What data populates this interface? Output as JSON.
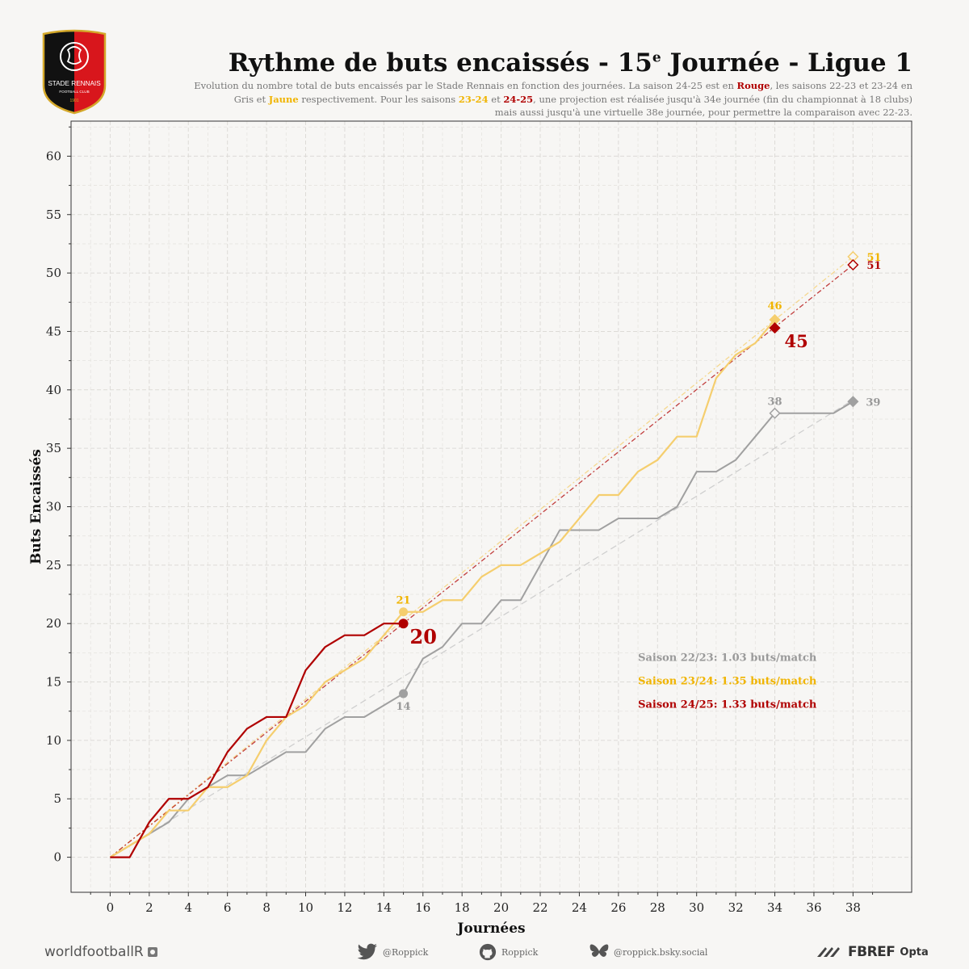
{
  "header": {
    "title_main": "Rythme de buts encaissés - 15",
    "title_sup": "e",
    "title_end": " Journée - Ligue 1",
    "subtitle": {
      "p1": "Evolution du nombre total de buts encaissés par le Stade Rennais en fonction des journées. La saison 24-25 est en ",
      "w_rouge": "Rouge",
      "p2": ", les saisons 22-23 et 23-24 en",
      "w_gris": "Gris",
      "p3": " et ",
      "w_jaune": "Jaune",
      "p4": " respectivement. Pour les saisons ",
      "w_2324": "23-24",
      "p5": "  et ",
      "w_2425": "24-25",
      "p6": ", une projection est réalisée jusqu'à 34e journée (fin du championnat à 18 clubs)",
      "p7": "mais aussi jusqu'à une virtuelle 38e journée, pour permettre la comparaison avec 22-23."
    }
  },
  "logo": {
    "club_name": "STADE RENNAIS",
    "club_sub": "FOOTBALL CLUB",
    "year": "1901"
  },
  "colors": {
    "red": "#b00000",
    "yellow": "#f5ce6e",
    "yellow_text": "#f0b400",
    "grey": "#a0a0a0",
    "background": "#f7f6f4"
  },
  "chart_data": {
    "type": "line",
    "title": "Rythme de buts encaissés - 15e Journée - Ligue 1",
    "xlabel": "Journées",
    "ylabel": "Buts Encaissés",
    "xlim": [
      -2,
      41
    ],
    "ylim": [
      -3,
      63
    ],
    "xticks": [
      0,
      2,
      4,
      6,
      8,
      10,
      12,
      14,
      16,
      18,
      20,
      22,
      24,
      26,
      28,
      30,
      32,
      34,
      36,
      38
    ],
    "yticks": [
      0,
      5,
      10,
      15,
      20,
      25,
      30,
      35,
      40,
      45,
      50,
      55,
      60
    ],
    "grid": true,
    "series": [
      {
        "name": "Saison 22/23",
        "color": "#a0a0a0",
        "x": [
          0,
          1,
          2,
          3,
          4,
          5,
          6,
          7,
          8,
          9,
          10,
          11,
          12,
          13,
          14,
          15,
          16,
          17,
          18,
          19,
          20,
          21,
          22,
          23,
          24,
          25,
          26,
          27,
          28,
          29,
          30,
          31,
          32,
          33,
          34,
          35,
          36,
          37,
          38
        ],
        "values": [
          0,
          1,
          2,
          3,
          5,
          6,
          7,
          7,
          8,
          9,
          9,
          11,
          12,
          12,
          13,
          14,
          17,
          18,
          20,
          20,
          22,
          22,
          25,
          28,
          28,
          28,
          29,
          29,
          29,
          30,
          33,
          33,
          34,
          36,
          38,
          38,
          38,
          38,
          39
        ],
        "rate_label": "Saison 22/23: 1.03 buts/match",
        "rate": 1.03,
        "markers": [
          {
            "x": 15,
            "y": 14,
            "label": "14",
            "shape": "circle",
            "filled": true
          },
          {
            "x": 34,
            "y": 38,
            "label": "38",
            "shape": "diamond",
            "filled": false
          },
          {
            "x": 38,
            "y": 39,
            "label": "39",
            "shape": "diamond",
            "filled": true
          }
        ]
      },
      {
        "name": "Saison 23/24",
        "color": "#f5ce6e",
        "x": [
          0,
          1,
          2,
          3,
          4,
          5,
          6,
          7,
          8,
          9,
          10,
          11,
          12,
          13,
          14,
          15,
          16,
          17,
          18,
          19,
          20,
          21,
          22,
          23,
          24,
          25,
          26,
          27,
          28,
          29,
          30,
          31,
          32,
          33,
          34
        ],
        "values": [
          0,
          1,
          2,
          4,
          4,
          6,
          6,
          7,
          10,
          12,
          13,
          15,
          16,
          17,
          19,
          21,
          21,
          22,
          22,
          24,
          25,
          25,
          26,
          27,
          29,
          31,
          31,
          33,
          34,
          36,
          36,
          41,
          43,
          44,
          46
        ],
        "rate_label": "Saison 23/24: 1.35 buts/match",
        "rate": 1.35,
        "markers": [
          {
            "x": 15,
            "y": 21,
            "label": "21",
            "shape": "circle",
            "filled": true
          },
          {
            "x": 34,
            "y": 46,
            "label": "46",
            "shape": "diamond",
            "filled": true
          },
          {
            "x": 38,
            "y": 51.4,
            "label": "51",
            "shape": "diamond",
            "filled": false
          }
        ]
      },
      {
        "name": "Saison 24/25",
        "color": "#b00000",
        "x": [
          0,
          1,
          2,
          3,
          4,
          5,
          6,
          7,
          8,
          9,
          10,
          11,
          12,
          13,
          14,
          15
        ],
        "values": [
          0,
          0,
          3,
          5,
          5,
          6,
          9,
          11,
          12,
          12,
          16,
          18,
          19,
          19,
          20,
          20
        ],
        "rate_label": "Saison 24/25: 1.33 buts/match",
        "rate": 1.33,
        "markers": [
          {
            "x": 15,
            "y": 20,
            "label": "20",
            "shape": "circle",
            "filled": true
          },
          {
            "x": 34,
            "y": 45.3,
            "label": "45",
            "shape": "diamond",
            "filled": true
          },
          {
            "x": 38,
            "y": 50.7,
            "label": "51",
            "shape": "diamond",
            "filled": false
          }
        ]
      }
    ]
  },
  "footer": {
    "brand": "worldfootballR",
    "twitter": "@Roppick",
    "github": "Roppick",
    "bluesky": "@roppick.bsky.social",
    "fbref": "FBREF",
    "opta": "Opta"
  }
}
